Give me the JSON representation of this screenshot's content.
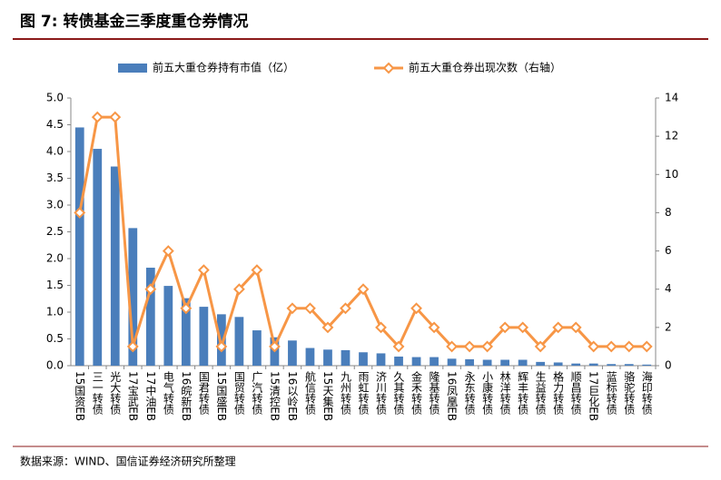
{
  "chart_data": {
    "type": "bar-line",
    "title": "图 7:  转债基金三季度重仓券情况",
    "source": "数据来源：WIND、国信证券经济研究所整理",
    "categories": [
      "15国资EB",
      "三一转债",
      "光大转债",
      "17宝武EB",
      "17中油EB",
      "电气转债",
      "16皖新EB",
      "国君转债",
      "15国盛EB",
      "国贸转债",
      "广汽转债",
      "15清控EB",
      "16以岭EB",
      "航信转债",
      "15天集EB",
      "九州转债",
      "雨虹转债",
      "济川转债",
      "久其转债",
      "金禾转债",
      "隆基转债",
      "16凤凰EB",
      "永东转债",
      "小康转债",
      "林洋转债",
      "辉丰转债",
      "生益转债",
      "格力转债",
      "顺昌转债",
      "17巨化EB",
      "蓝标转债",
      "骆驼转债",
      "海印转债"
    ],
    "series": [
      {
        "name": "前五大重仓券持有市值（亿）",
        "type": "bar",
        "color": "#4a7ebb",
        "values": [
          4.45,
          4.05,
          3.72,
          2.57,
          1.83,
          1.49,
          1.26,
          1.1,
          0.96,
          0.91,
          0.66,
          0.53,
          0.47,
          0.33,
          0.3,
          0.29,
          0.25,
          0.23,
          0.17,
          0.16,
          0.16,
          0.13,
          0.12,
          0.11,
          0.11,
          0.11,
          0.07,
          0.06,
          0.04,
          0.04,
          0.03,
          0.03,
          0.02
        ]
      },
      {
        "name": "前五大重仓券出现次数（右轴）",
        "type": "line",
        "axis": "y2",
        "color": "#f79646",
        "values": [
          8,
          13,
          13,
          1,
          4,
          6,
          3,
          5,
          1,
          4,
          5,
          1,
          3,
          3,
          2,
          3,
          4,
          2,
          1,
          3,
          2,
          1,
          1,
          1,
          2,
          2,
          1,
          2,
          2,
          1,
          1,
          1,
          1
        ]
      }
    ],
    "ylim": [
      0,
      5
    ],
    "yticks": [
      {
        "value": 0,
        "label": "0.0"
      },
      {
        "value": 0.5,
        "label": "0.5"
      },
      {
        "value": 1,
        "label": "1.0"
      },
      {
        "value": 1.5,
        "label": "1.5"
      },
      {
        "value": 2,
        "label": "2.0"
      },
      {
        "value": 2.5,
        "label": "2.5"
      },
      {
        "value": 3,
        "label": "3.0"
      },
      {
        "value": 3.5,
        "label": "3.5"
      },
      {
        "value": 4,
        "label": "4.0"
      },
      {
        "value": 4.5,
        "label": "4.5"
      },
      {
        "value": 5,
        "label": "5.0"
      }
    ],
    "y2lim": [
      0,
      14
    ],
    "y2ticks": [
      0,
      2,
      4,
      6,
      8,
      10,
      12,
      14
    ],
    "grid": false
  }
}
